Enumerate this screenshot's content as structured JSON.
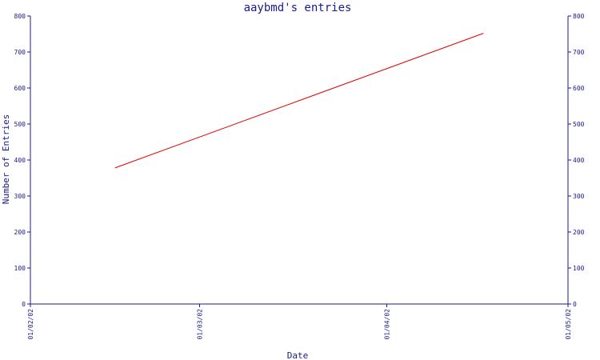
{
  "chart_data": {
    "type": "line",
    "title": "aaybmd's entries",
    "xlabel": "Date",
    "ylabel": "Number of Entries",
    "ylim": [
      0,
      800
    ],
    "y_ticks": [
      0,
      100,
      200,
      300,
      400,
      500,
      600,
      700,
      800
    ],
    "x_ticks": [
      "01/02/02",
      "01/03/02",
      "01/04/02",
      "01/05/02"
    ],
    "grid": false,
    "y_axis_right_mirror": true,
    "series": [
      {
        "color": "#e00000",
        "points": [
          {
            "x": "2002-02-15",
            "y": 378
          },
          {
            "x": "2002-04-17",
            "y": 752
          }
        ]
      }
    ],
    "colors": {
      "axis": "#1a1a8c",
      "text": "#1a1a8c",
      "background": "#ffffff"
    }
  }
}
